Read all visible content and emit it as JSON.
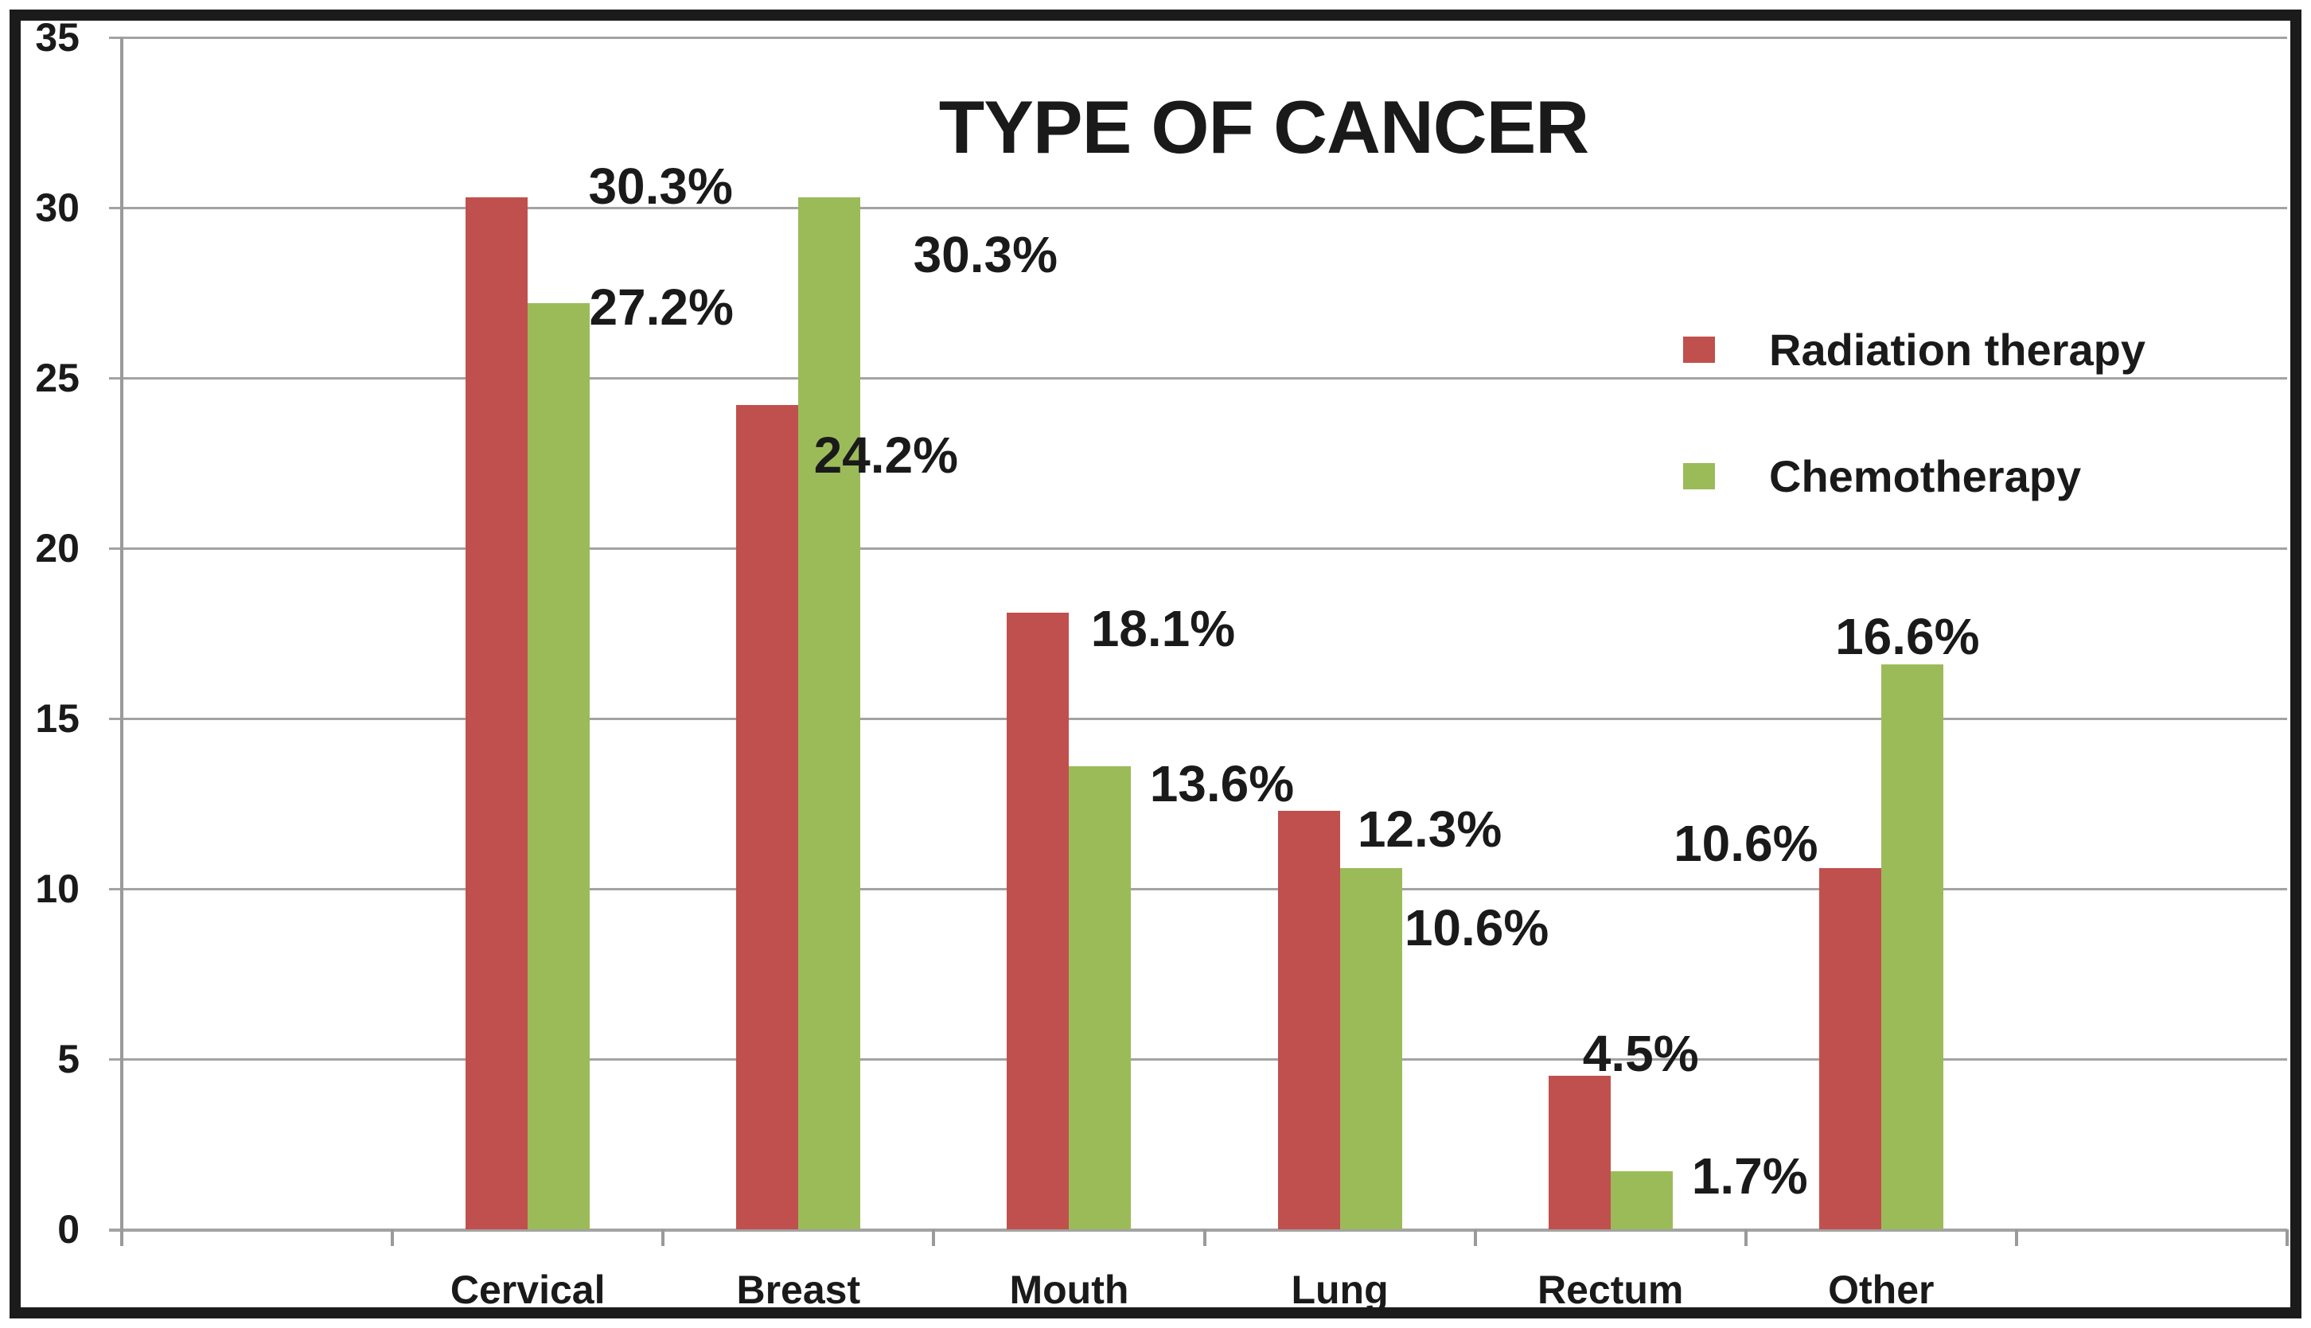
{
  "title": "TYPE OF CANCER",
  "colors": {
    "radiation": "#C0504D",
    "chemotherapy": "#9BBB59",
    "gridline": "#A3A3A3",
    "axis": "#9A9A9A",
    "text": "#1A1A1A",
    "background": "#FFFFFF",
    "border": "#1B1B1B"
  },
  "legend": {
    "position": "right-inside",
    "items": [
      {
        "label": "Radiation therapy",
        "color_key": "radiation"
      },
      {
        "label": "Chemotherapy",
        "color_key": "chemotherapy"
      }
    ]
  },
  "chart_data": {
    "type": "bar",
    "title": "TYPE OF CANCER",
    "xlabel": "",
    "ylabel": "",
    "grid": true,
    "categories": [
      "Cervical",
      "Breast",
      "Mouth",
      "Lung",
      "Rectum",
      "Other"
    ],
    "y_axis": {
      "min": 0,
      "max": 35,
      "step": 5,
      "tick_labels": [
        "35",
        "30",
        "25",
        "20",
        "15",
        "10",
        "5",
        "0"
      ]
    },
    "series": [
      {
        "name": "Radiation therapy",
        "color": "#C0504D",
        "values": [
          30.3,
          24.2,
          18.1,
          12.3,
          4.5,
          10.6
        ],
        "data_labels": [
          "30.3%",
          "24.2%",
          "18.1%",
          "12.3%",
          "4.5%",
          "10.6%"
        ],
        "label_anchors": [
          {
            "dx": 167,
            "cy": 234
          },
          {
            "dx": 110,
            "cy": 572
          },
          {
            "dx": 118,
            "cy": 790
          },
          {
            "dx": 113,
            "cy": 1042
          },
          {
            "dx": 38,
            "cy": 1324
          },
          {
            "dx": -170,
            "cy": 1060
          }
        ]
      },
      {
        "name": "Chemotherapy",
        "color": "#9BBB59",
        "values": [
          27.2,
          30.3,
          13.6,
          10.6,
          1.7,
          16.6
        ],
        "data_labels": [
          "27.2%",
          "30.3%",
          "13.6%",
          "10.6%",
          "1.7%",
          "16.6%"
        ],
        "label_anchors": [
          {
            "dx": 168,
            "cy": 386
          },
          {
            "dx": 235,
            "cy": 320
          },
          {
            "dx": 192,
            "cy": 985
          },
          {
            "dx": 172,
            "cy": 1166
          },
          {
            "dx": 175,
            "cy": 1478
          },
          {
            "dx": 33,
            "cy": 800
          }
        ]
      }
    ]
  }
}
